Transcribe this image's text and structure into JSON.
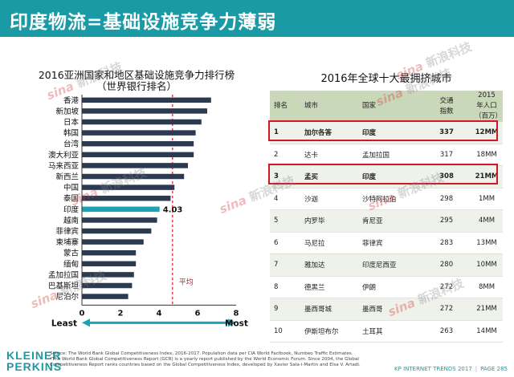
{
  "header": {
    "title": "印度物流=基础设施竞争力薄弱"
  },
  "left_chart": {
    "title_line1": "2016亚洲国家和地区基础设施竞争力排行榜",
    "title_line2": "（世界银行排名）"
  },
  "chart_data": {
    "type": "bar",
    "orientation": "horizontal",
    "categories": [
      "香港",
      "新加坡",
      "日本",
      "韩国",
      "台湾",
      "澳大利亚",
      "马来西亚",
      "新西兰",
      "中国",
      "泰国",
      "印度",
      "越南",
      "菲律宾",
      "柬埔寨",
      "蒙古",
      "缅甸",
      "孟加拉国",
      "巴基斯坦",
      "尼泊尔"
    ],
    "values": [
      6.7,
      6.5,
      6.2,
      5.9,
      5.8,
      5.8,
      5.5,
      5.3,
      4.8,
      4.6,
      4.03,
      3.9,
      3.6,
      3.2,
      2.8,
      2.8,
      2.7,
      2.6,
      2.4
    ],
    "highlight_category": "印度",
    "highlight_label": "4.03",
    "average_value": 4.7,
    "average_label": "平均",
    "xlim": [
      0,
      8
    ],
    "x_ticks": [
      "0",
      "2",
      "4",
      "6",
      "8"
    ],
    "arrow_left_label": "Least",
    "arrow_right_label": "Most",
    "colors": {
      "bar": "#2b3a4f",
      "highlight": "#1aa3b2",
      "average": "#d0182a",
      "arrow": "#1aa3b2"
    }
  },
  "right_table": {
    "title": "2016年全球十大最拥挤城市",
    "headers": [
      "排名",
      "城市",
      "国家",
      "交通\n指数",
      "2015年人口\n（百万）"
    ],
    "rows": [
      [
        "1",
        "加尔各答",
        "印度",
        "337",
        "12MM"
      ],
      [
        "2",
        "达卡",
        "孟加拉国",
        "317",
        "18MM"
      ],
      [
        "3",
        "孟买",
        "印度",
        "308",
        "21MM"
      ],
      [
        "4",
        "沙迦",
        "沙特阿拉伯",
        "298",
        "1MM"
      ],
      [
        "5",
        "内罗毕",
        "肯尼亚",
        "295",
        "4MM"
      ],
      [
        "6",
        "马尼拉",
        "菲律宾",
        "283",
        "13MM"
      ],
      [
        "7",
        "雅加达",
        "印度尼西亚",
        "280",
        "10MM"
      ],
      [
        "8",
        "德黑兰",
        "伊朗",
        "272",
        "8MM"
      ],
      [
        "9",
        "墨西哥城",
        "墨西哥",
        "272",
        "21MM"
      ],
      [
        "10",
        "伊斯坦布尔",
        "土耳其",
        "263",
        "14MM"
      ]
    ],
    "highlighted_rows": [
      0,
      2
    ],
    "highlight_color": "#d0182a"
  },
  "footer": {
    "logo_line1": "KLEINER",
    "logo_line2": "PERKINS",
    "source_line1": "Source: The World Bank Global Competitiveness Index, 2016-2017. Population data per CIA World Factbook, Numbeo Traffic Estimates.",
    "source_line2": "*The World Bank Global Competitiveness Report (GCR) is a yearly report published by the World Economic Forum. Since 2004, the Global",
    "source_line3": "Competitiveness Report ranks countries based on the Global Competitiveness Index, developed by Xavier Sala-i-Martin and Elsa V. Artadi.",
    "report": "KP INTERNET TRENDS 2017",
    "page": "PAGE 285"
  },
  "watermark": {
    "brand": "sina",
    "text": "新浪科技"
  }
}
